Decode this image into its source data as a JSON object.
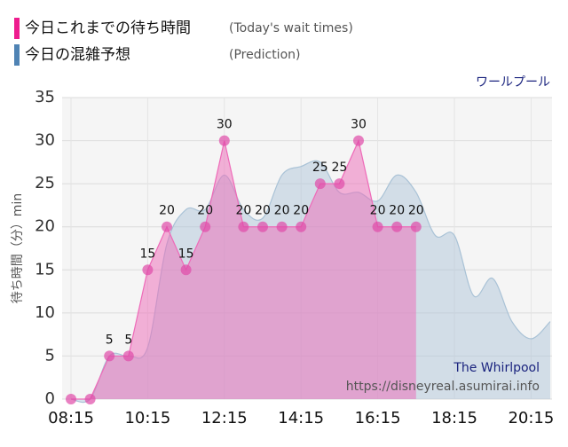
{
  "chart_data": {
    "type": "area",
    "title": "ワールプール",
    "ylabel": "待ち時間（分）min",
    "legend": [
      {
        "label": "今日これまでの待ち時間",
        "note": "(Today's wait times)"
      },
      {
        "label": "今日の混雑予想",
        "note": "(Prediction)"
      }
    ],
    "watermark": [
      "The Whirlpool",
      "https://disneyreal.asumirai.info"
    ],
    "xlim": [
      "08:15",
      "20:45"
    ],
    "xticks": [
      "08:15",
      "10:15",
      "12:15",
      "14:15",
      "16:15",
      "18:15",
      "20:15"
    ],
    "ylim": [
      0,
      35
    ],
    "yticks": [
      0,
      5,
      10,
      15,
      20,
      25,
      30,
      35
    ],
    "grid": true,
    "series": [
      {
        "name": "今日の混雑予想",
        "color": "#a9c2d6",
        "smooth": true,
        "markers": false,
        "x": [
          "08:15",
          "08:45",
          "09:15",
          "09:45",
          "10:15",
          "10:45",
          "11:15",
          "11:45",
          "12:15",
          "12:45",
          "13:15",
          "13:45",
          "14:15",
          "14:45",
          "15:15",
          "15:45",
          "16:15",
          "16:45",
          "17:15",
          "17:45",
          "18:15",
          "18:45",
          "19:15",
          "19:45",
          "20:15",
          "20:45"
        ],
        "values": [
          0,
          0,
          5,
          5,
          6,
          18,
          22,
          22,
          26,
          22,
          21,
          26,
          27,
          27.5,
          24,
          24,
          23,
          26,
          24,
          19,
          19,
          12,
          14,
          9,
          7,
          9
        ]
      },
      {
        "name": "今日これまでの待ち時間",
        "color": "#ee6ab8",
        "smooth": false,
        "markers": true,
        "x": [
          "08:15",
          "08:45",
          "09:15",
          "09:45",
          "10:15",
          "10:45",
          "11:15",
          "11:45",
          "12:15",
          "12:45",
          "13:15",
          "13:45",
          "14:15",
          "14:45",
          "15:15",
          "15:45",
          "16:15",
          "16:45",
          "17:15"
        ],
        "values": [
          0,
          0,
          5,
          5,
          15,
          20,
          15,
          20,
          30,
          20,
          20,
          20,
          20,
          25,
          25,
          30,
          20,
          20,
          20
        ]
      }
    ]
  }
}
